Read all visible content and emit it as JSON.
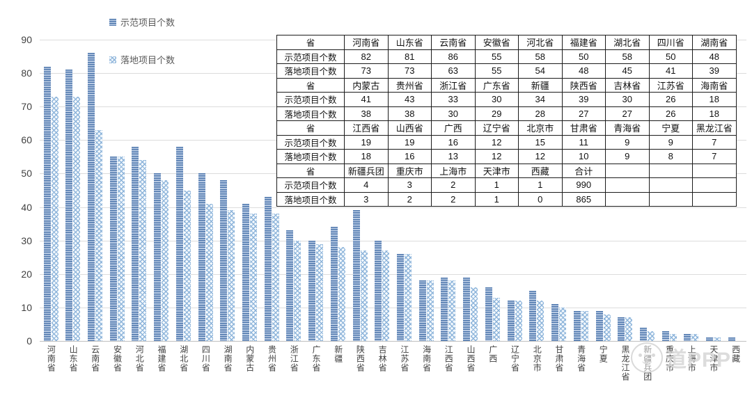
{
  "legend": {
    "items": [
      {
        "label": "示范项目个数",
        "pattern": "horizontal-stripes",
        "color": "#4e77ad"
      },
      {
        "label": "落地项目个数",
        "pattern": "cross-hatch",
        "color": "#8db4da"
      }
    ]
  },
  "chart_data": {
    "type": "bar",
    "title": "",
    "xlabel": "",
    "ylabel": "",
    "ylim": [
      0,
      90
    ],
    "y_ticks": [
      0,
      10,
      20,
      30,
      40,
      50,
      60,
      70,
      80,
      90
    ],
    "grid": true,
    "legend_position": "top-left",
    "categories": [
      "河南省",
      "山东省",
      "云南省",
      "安徽省",
      "河北省",
      "福建省",
      "湖北省",
      "四川省",
      "湖南省",
      "内蒙古",
      "贵州省",
      "浙江省",
      "广东省",
      "新疆",
      "陕西省",
      "吉林省",
      "江苏省",
      "海南省",
      "江西省",
      "山西省",
      "广西",
      "辽宁省",
      "北京市",
      "甘肃省",
      "青海省",
      "宁夏",
      "黑龙江省",
      "新疆兵团",
      "重庆市",
      "上海市",
      "天津市",
      "西藏"
    ],
    "series": [
      {
        "name": "示范项目个数",
        "values": [
          82,
          81,
          86,
          55,
          58,
          50,
          58,
          50,
          48,
          41,
          43,
          33,
          30,
          34,
          39,
          30,
          26,
          18,
          19,
          19,
          16,
          12,
          15,
          11,
          9,
          9,
          7,
          4,
          3,
          2,
          1,
          1
        ]
      },
      {
        "name": "落地项目个数",
        "values": [
          73,
          73,
          63,
          55,
          54,
          48,
          45,
          41,
          39,
          38,
          38,
          30,
          29,
          28,
          27,
          27,
          26,
          18,
          18,
          16,
          13,
          12,
          12,
          10,
          9,
          8,
          7,
          3,
          2,
          2,
          1,
          0
        ]
      }
    ]
  },
  "table": {
    "header_label": "省",
    "demo_label": "示范项目个数",
    "landed_label": "落地项目个数",
    "groups": [
      {
        "provinces": [
          "河南省",
          "山东省",
          "云南省",
          "安徽省",
          "河北省",
          "福建省",
          "湖北省",
          "四川省",
          "湖南省"
        ],
        "demo": [
          "82",
          "81",
          "86",
          "55",
          "58",
          "50",
          "58",
          "50",
          "48"
        ],
        "landed": [
          "73",
          "73",
          "63",
          "55",
          "54",
          "48",
          "45",
          "41",
          "39"
        ]
      },
      {
        "provinces": [
          "内蒙古",
          "贵州省",
          "浙江省",
          "广东省",
          "新疆",
          "陕西省",
          "吉林省",
          "江苏省",
          "海南省"
        ],
        "demo": [
          "41",
          "43",
          "33",
          "30",
          "34",
          "39",
          "30",
          "26",
          "18"
        ],
        "landed": [
          "38",
          "38",
          "30",
          "29",
          "28",
          "27",
          "27",
          "26",
          "18"
        ]
      },
      {
        "provinces": [
          "江西省",
          "山西省",
          "广西",
          "辽宁省",
          "北京市",
          "甘肃省",
          "青海省",
          "宁夏",
          "黑龙江省"
        ],
        "demo": [
          "19",
          "19",
          "16",
          "12",
          "15",
          "11",
          "9",
          "9",
          "7"
        ],
        "landed": [
          "18",
          "16",
          "13",
          "12",
          "12",
          "10",
          "9",
          "8",
          "7"
        ]
      },
      {
        "provinces": [
          "新疆兵团",
          "重庆市",
          "上海市",
          "天津市",
          "西藏",
          "合计",
          "",
          "",
          ""
        ],
        "demo": [
          "4",
          "3",
          "2",
          "1",
          "1",
          "990",
          "",
          "",
          ""
        ],
        "landed": [
          "3",
          "2",
          "2",
          "1",
          "0",
          "865",
          "",
          "",
          ""
        ]
      }
    ]
  },
  "watermark": {
    "text": "道PPP"
  },
  "colors": {
    "demo_bar_dark": "#4e77ad",
    "demo_bar_light": "#b9cbe4",
    "landed_bar": "#8db4da",
    "gridline": "#dcdcdc",
    "axis_text": "#404040",
    "table_border": "#1a1a1a"
  }
}
